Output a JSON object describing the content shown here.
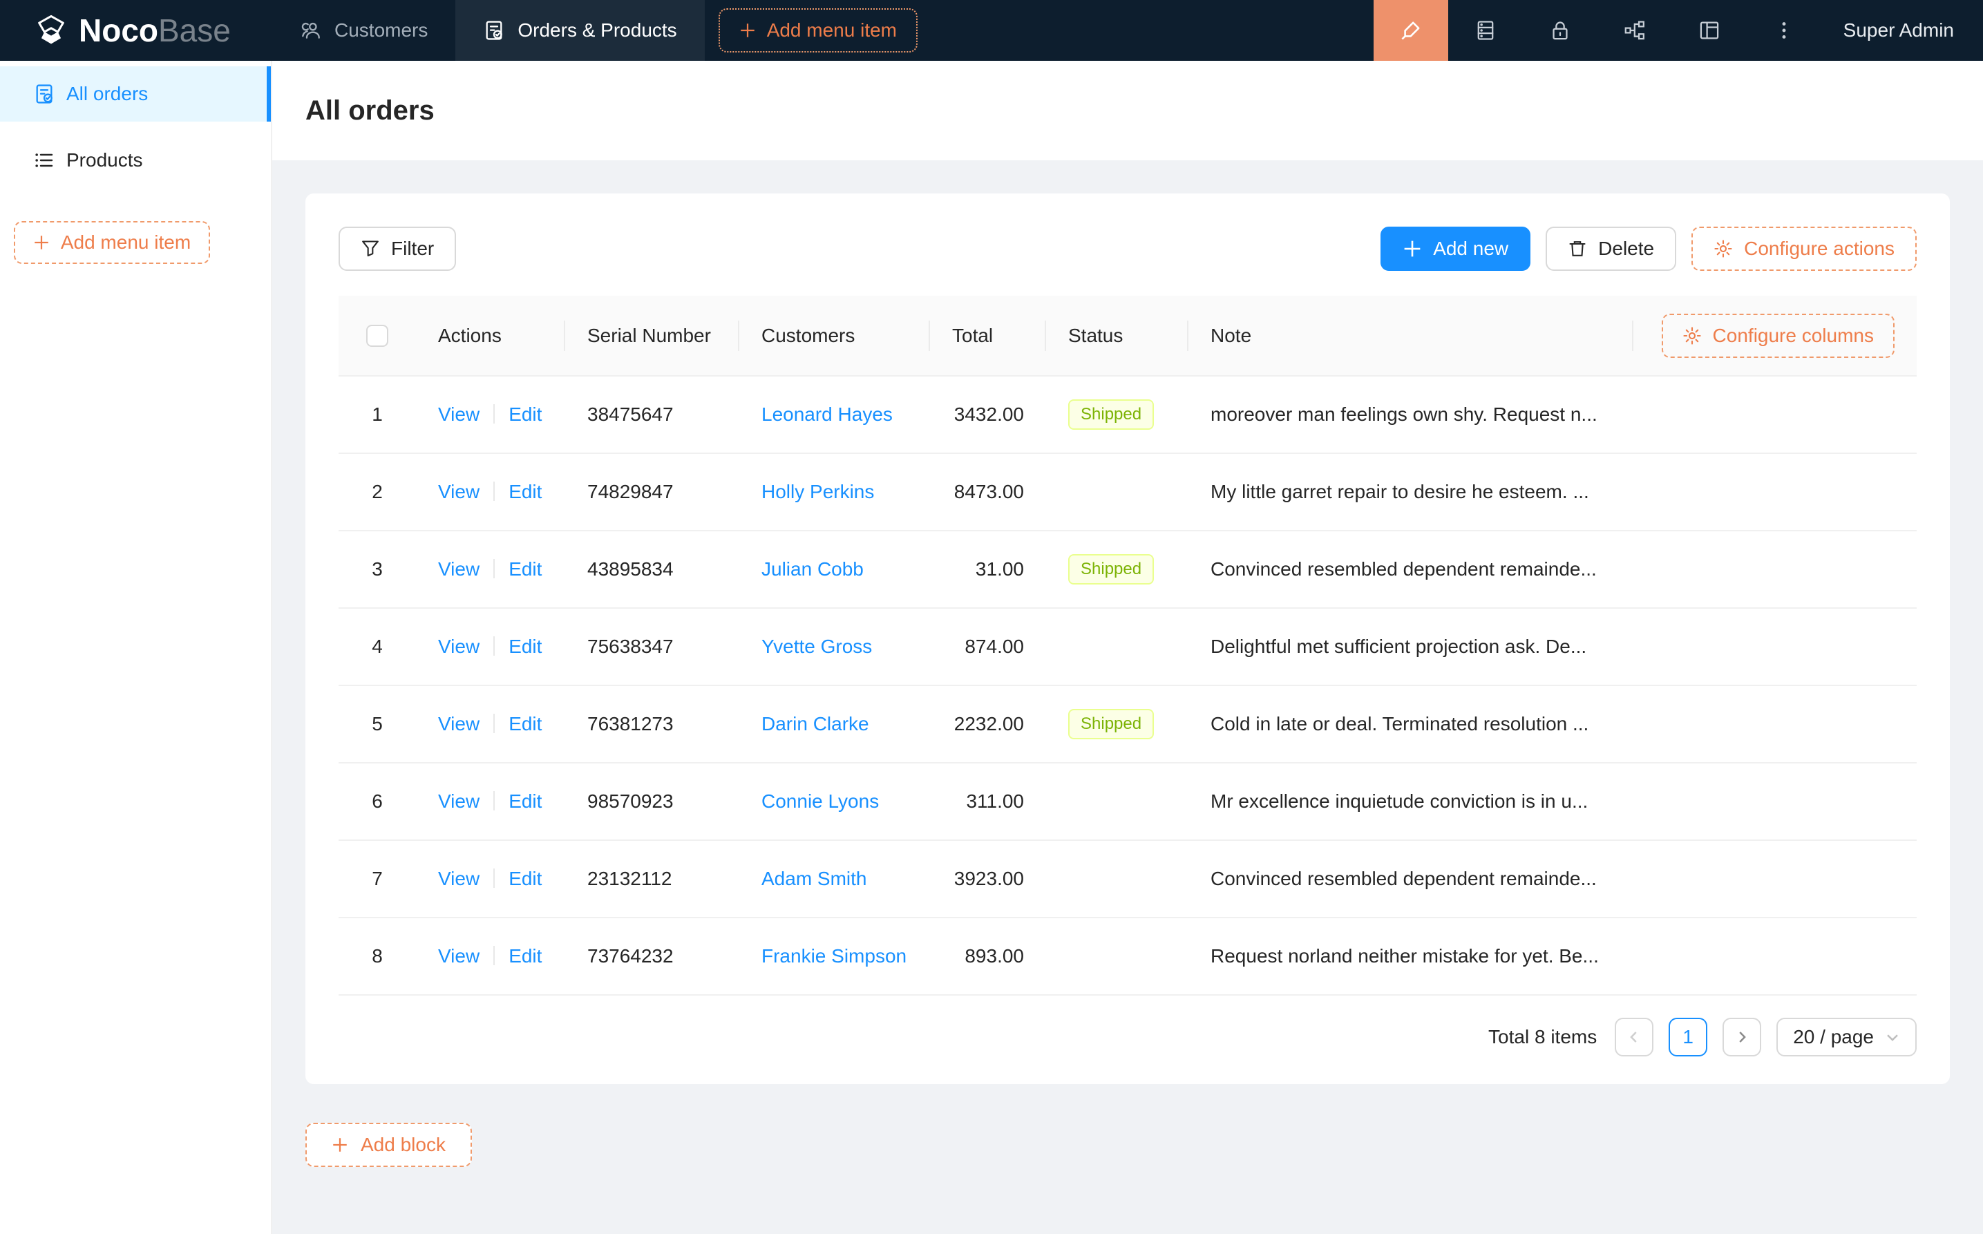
{
  "navbar": {
    "logo_bold": "Noco",
    "logo_light": "Base",
    "tabs": [
      {
        "label": "Customers",
        "icon": "users-icon",
        "active": false
      },
      {
        "label": "Orders & Products",
        "icon": "file-check-icon",
        "active": true
      }
    ],
    "add_menu_item_label": "Add menu item",
    "right_icons": [
      "highlighter-icon",
      "database-icon",
      "lock-icon",
      "plugins-icon",
      "layout-icon",
      "more-icon"
    ],
    "user": "Super Admin"
  },
  "sidebar": {
    "items": [
      {
        "label": "All orders",
        "icon": "file-check-icon",
        "selected": true
      },
      {
        "label": "Products",
        "icon": "list-icon",
        "selected": false
      }
    ],
    "add_menu_item_label": "Add menu item"
  },
  "page": {
    "title": "All orders"
  },
  "toolbar": {
    "filter_label": "Filter",
    "add_new_label": "Add new",
    "delete_label": "Delete",
    "configure_actions_label": "Configure actions"
  },
  "table": {
    "columns": [
      "Actions",
      "Serial Number",
      "Customers",
      "Total",
      "Status",
      "Note"
    ],
    "configure_columns_label": "Configure columns",
    "action_labels": {
      "view": "View",
      "edit": "Edit"
    },
    "rows": [
      {
        "index": 1,
        "serial": "38475647",
        "customer": "Leonard Hayes",
        "total": "3432.00",
        "status": "Shipped",
        "note": "moreover man feelings own shy. Request n..."
      },
      {
        "index": 2,
        "serial": "74829847",
        "customer": "Holly Perkins",
        "total": "8473.00",
        "status": "",
        "note": "My little garret repair to desire he esteem. ..."
      },
      {
        "index": 3,
        "serial": "43895834",
        "customer": "Julian Cobb",
        "total": "31.00",
        "status": "Shipped",
        "note": "Convinced resembled dependent remainde..."
      },
      {
        "index": 4,
        "serial": "75638347",
        "customer": "Yvette Gross",
        "total": "874.00",
        "status": "",
        "note": "Delightful met sufficient projection ask. De..."
      },
      {
        "index": 5,
        "serial": "76381273",
        "customer": "Darin Clarke",
        "total": "2232.00",
        "status": "Shipped",
        "note": "Cold in late or deal. Terminated resolution ..."
      },
      {
        "index": 6,
        "serial": "98570923",
        "customer": "Connie Lyons",
        "total": "311.00",
        "status": "",
        "note": "Mr excellence inquietude conviction is in u..."
      },
      {
        "index": 7,
        "serial": "23132112",
        "customer": "Adam Smith",
        "total": "3923.00",
        "status": "",
        "note": "Convinced resembled dependent remainde..."
      },
      {
        "index": 8,
        "serial": "73764232",
        "customer": "Frankie Simpson",
        "total": "893.00",
        "status": "",
        "note": "Request norland neither mistake for yet. Be..."
      }
    ]
  },
  "pagination": {
    "total_label": "Total 8 items",
    "current_page": "1",
    "page_size_label": "20 / page"
  },
  "add_block_label": "Add block",
  "colors": {
    "primary_blue": "#1890ff",
    "designer_orange": "#ee7d4a",
    "navbar_bg": "#0d1e2e",
    "status_shipped_bg": "#fcffe6",
    "status_shipped_border": "#eaff8f",
    "status_shipped_text": "#7cb305"
  }
}
